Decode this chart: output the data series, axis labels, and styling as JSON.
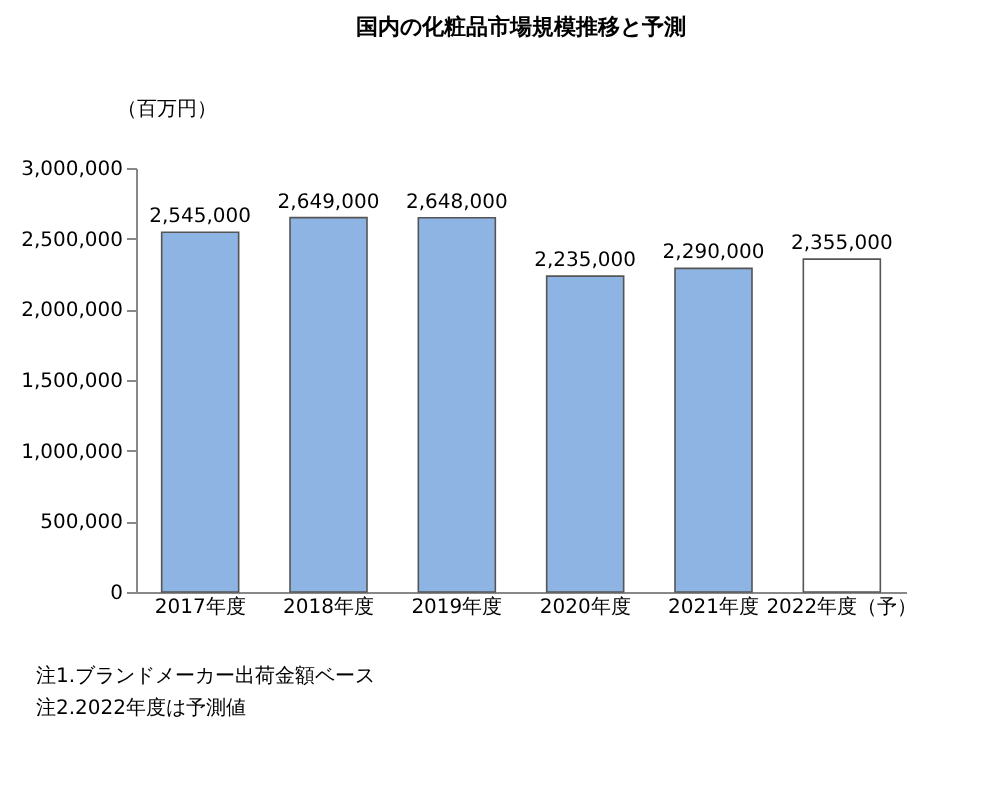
{
  "chart_data": {
    "type": "bar",
    "title": "国内の化粧品市場規模推移と予測",
    "ylabel": "（百万円）",
    "categories": [
      "2017年度",
      "2018年度",
      "2019年度",
      "2020年度",
      "2021年度",
      "2022年度（予）"
    ],
    "values": [
      2545000,
      2649000,
      2648000,
      2235000,
      2290000,
      2355000
    ],
    "colors": [
      "#8db4e2",
      "#8db4e2",
      "#8db4e2",
      "#8db4e2",
      "#8db4e2",
      "#ffffff"
    ],
    "value_labels": [
      "2,545,000",
      "2,649,000",
      "2,648,000",
      "2,235,000",
      "2,290,000",
      "2,355,000"
    ],
    "ylim": [
      0,
      3000000
    ],
    "yticks": [
      {
        "value": 0,
        "label": "0"
      },
      {
        "value": 500000,
        "label": "500,000"
      },
      {
        "value": 1000000,
        "label": "1,000,000"
      },
      {
        "value": 1500000,
        "label": "1,500,000"
      },
      {
        "value": 2000000,
        "label": "2,000,000"
      },
      {
        "value": 2500000,
        "label": "2,500,000"
      },
      {
        "value": 3000000,
        "label": "3,000,000"
      }
    ],
    "grid": false,
    "annotations": [
      "注1.ブランドメーカー出荷金額ベース",
      "注2.2022年度は予測値"
    ]
  }
}
